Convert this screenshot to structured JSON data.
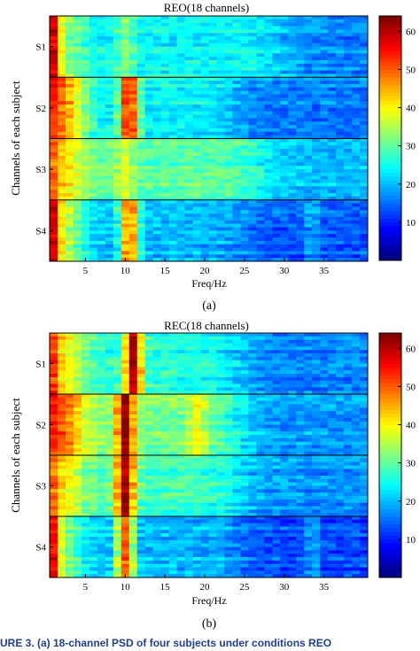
{
  "chart_data": [
    {
      "type": "heatmap",
      "title": "REO(18 channels)",
      "xlabel": "Freq/Hz",
      "ylabel": "Channels of each subject",
      "x_ticks": [
        5,
        10,
        15,
        20,
        25,
        30,
        35
      ],
      "x_range": [
        1,
        40
      ],
      "row_groups": [
        "S1",
        "S2",
        "S3",
        "S4"
      ],
      "rows_per_group": 18,
      "colorbar_ticks": [
        10,
        20,
        30,
        40,
        50,
        60
      ],
      "colorbar_range": [
        0,
        64
      ],
      "colormap": "jet",
      "caption": "(a)",
      "profiles": [
        {
          "name": "S1",
          "dc": 58,
          "delta": 33,
          "alpha": 33,
          "alpha_center": 10,
          "beta": 24,
          "high": 16,
          "fall_at": 30
        },
        {
          "name": "S2",
          "dc": 54,
          "delta": 48,
          "alpha": 57,
          "alpha_center": 10.5,
          "beta": 24,
          "high": 16,
          "fall_at": 24
        },
        {
          "name": "S3",
          "dc": 50,
          "delta": 42,
          "alpha": 38,
          "alpha_center": 10,
          "beta": 30,
          "high": 20,
          "fall_at": 27
        },
        {
          "name": "S4",
          "dc": 58,
          "delta": 36,
          "alpha": 50,
          "alpha_center": 10.5,
          "beta": 19,
          "high": 13,
          "fall_at": 25,
          "spike_at": 33.5,
          "spike": 24
        }
      ]
    },
    {
      "type": "heatmap",
      "title": "REC(18 channels)",
      "xlabel": "Freq/Hz",
      "ylabel": "Channels of each subject",
      "x_ticks": [
        5,
        10,
        15,
        20,
        25,
        30,
        35
      ],
      "x_range": [
        1,
        40
      ],
      "row_groups": [
        "S1",
        "S2",
        "S3",
        "S4"
      ],
      "rows_per_group": 18,
      "colorbar_ticks": [
        10,
        20,
        30,
        40,
        50,
        60
      ],
      "colorbar_range": [
        0,
        64
      ],
      "colormap": "jet",
      "caption": "(b)",
      "profiles": [
        {
          "name": "S1",
          "dc": 52,
          "delta": 40,
          "alpha": 60,
          "alpha_center": 11,
          "beta": 26,
          "high": 16,
          "fall_at": 24
        },
        {
          "name": "S2",
          "dc": 54,
          "delta": 50,
          "alpha": 63,
          "alpha_center": 10,
          "beta": 32,
          "high": 18,
          "fall_at": 24,
          "bump_at": 19,
          "bump": 40
        },
        {
          "name": "S3",
          "dc": 48,
          "delta": 40,
          "alpha": 62,
          "alpha_center": 10,
          "beta": 28,
          "high": 17,
          "fall_at": 24
        },
        {
          "name": "S4",
          "dc": 56,
          "delta": 32,
          "alpha": 50,
          "alpha_center": 10,
          "beta": 20,
          "high": 13,
          "fall_at": 24,
          "spike_at": 33.5,
          "spike": 26
        }
      ]
    }
  ],
  "footer_caption": "URE 3. (a) 18-channel PSD of four subjects under conditions REO"
}
